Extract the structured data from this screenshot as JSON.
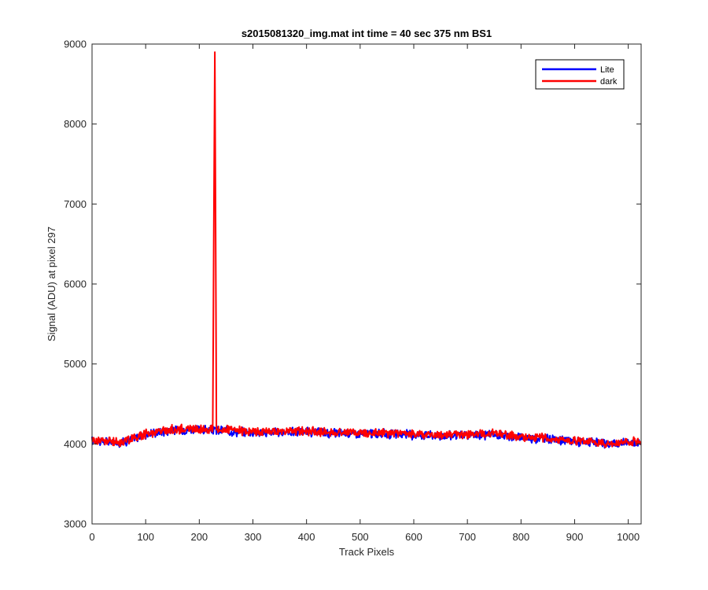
{
  "chart_data": {
    "type": "line",
    "title": "s2015081320_img.mat int time = 40 sec  375 nm BS1",
    "xlabel": "Track Pixels",
    "ylabel": "Signal (ADU) at pixel 297",
    "xlim": [
      0,
      1024
    ],
    "ylim": [
      3000,
      9000
    ],
    "xticks": [
      0,
      100,
      200,
      300,
      400,
      500,
      600,
      700,
      800,
      900,
      1000
    ],
    "yticks": [
      3000,
      4000,
      5000,
      6000,
      7000,
      8000,
      9000
    ],
    "grid": false,
    "legend_position": "top-right",
    "series": [
      {
        "name": "Lite",
        "color": "#0000ff",
        "x": [
          0,
          25,
          50,
          75,
          100,
          125,
          150,
          175,
          200,
          225,
          250,
          275,
          300,
          325,
          350,
          375,
          400,
          425,
          450,
          475,
          500,
          525,
          550,
          575,
          600,
          625,
          650,
          675,
          700,
          725,
          750,
          775,
          800,
          825,
          850,
          875,
          900,
          925,
          950,
          975,
          1000,
          1023
        ],
        "y": [
          4040,
          4030,
          4010,
          4060,
          4120,
          4150,
          4170,
          4180,
          4175,
          4170,
          4165,
          4150,
          4150,
          4140,
          4145,
          4150,
          4150,
          4140,
          4135,
          4140,
          4135,
          4130,
          4125,
          4120,
          4115,
          4110,
          4100,
          4105,
          4110,
          4110,
          4120,
          4100,
          4080,
          4070,
          4070,
          4040,
          4030,
          4020,
          4000,
          4000,
          4020,
          4010
        ]
      },
      {
        "name": "dark",
        "color": "#ff0000",
        "x": [
          0,
          25,
          50,
          75,
          100,
          125,
          150,
          175,
          200,
          225,
          229,
          232,
          250,
          275,
          300,
          325,
          350,
          375,
          400,
          425,
          450,
          475,
          500,
          525,
          550,
          575,
          600,
          625,
          650,
          675,
          700,
          725,
          750,
          775,
          800,
          825,
          850,
          875,
          900,
          925,
          950,
          975,
          1000,
          1023
        ],
        "y": [
          4050,
          4040,
          4020,
          4070,
          4130,
          4160,
          4180,
          4190,
          4185,
          4180,
          8900,
          4180,
          4175,
          4160,
          4160,
          4150,
          4155,
          4160,
          4160,
          4150,
          4145,
          4150,
          4145,
          4140,
          4135,
          4130,
          4125,
          4120,
          4110,
          4115,
          4120,
          4120,
          4130,
          4110,
          4090,
          4080,
          4080,
          4050,
          4040,
          4030,
          4010,
          4010,
          4030,
          4020
        ]
      }
    ]
  }
}
